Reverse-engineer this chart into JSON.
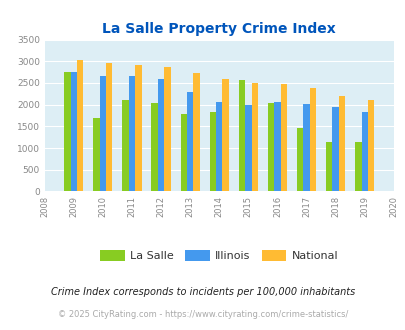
{
  "title": "La Salle Property Crime Index",
  "years": [
    2009,
    2010,
    2011,
    2012,
    2013,
    2014,
    2015,
    2016,
    2017,
    2018,
    2019
  ],
  "lasalle": [
    2750,
    1700,
    2100,
    2030,
    1790,
    1820,
    2560,
    2040,
    1470,
    1140,
    1140
  ],
  "illinois": [
    2750,
    2670,
    2670,
    2590,
    2290,
    2060,
    1990,
    2050,
    2010,
    1940,
    1840
  ],
  "national": [
    3040,
    2950,
    2910,
    2870,
    2730,
    2590,
    2500,
    2470,
    2380,
    2210,
    2110
  ],
  "lasalle_color": "#88cc22",
  "illinois_color": "#4499ee",
  "national_color": "#ffbb33",
  "xlim": [
    2008,
    2020
  ],
  "ylim": [
    0,
    3500
  ],
  "yticks": [
    0,
    500,
    1000,
    1500,
    2000,
    2500,
    3000,
    3500
  ],
  "xticks": [
    2008,
    2009,
    2010,
    2011,
    2012,
    2013,
    2014,
    2015,
    2016,
    2017,
    2018,
    2019,
    2020
  ],
  "background_color": "#ddeef5",
  "fig_background": "#ffffff",
  "legend_labels": [
    "La Salle",
    "Illinois",
    "National"
  ],
  "footnote1": "Crime Index corresponds to incidents per 100,000 inhabitants",
  "footnote2": "© 2025 CityRating.com - https://www.cityrating.com/crime-statistics/",
  "bar_width": 0.22
}
